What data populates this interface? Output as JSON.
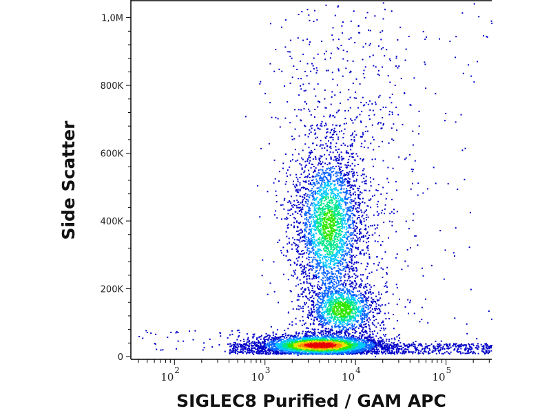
{
  "chart_data": {
    "type": "scatter",
    "subtype": "density-dot-plot",
    "xlabel": "SIGLEC8 Purified / GAM APC",
    "ylabel": "Side Scatter",
    "x_scale": "log",
    "xlim": [
      33,
      320000
    ],
    "ylim": [
      0,
      1050000
    ],
    "x_ticks": [
      {
        "base": "10",
        "exp": "2",
        "value": 100
      },
      {
        "base": "10",
        "exp": "3",
        "value": 1000
      },
      {
        "base": "10",
        "exp": "4",
        "value": 10000
      },
      {
        "base": "10",
        "exp": "5",
        "value": 100000
      }
    ],
    "y_ticks": [
      {
        "label": "0",
        "value": 0
      },
      {
        "label": "200K",
        "value": 200000
      },
      {
        "label": "400K",
        "value": 400000
      },
      {
        "label": "600K",
        "value": 600000
      },
      {
        "label": "800K",
        "value": 800000
      },
      {
        "label": "1,0M",
        "value": 1000000
      }
    ],
    "grid": false,
    "colormap": [
      "#0000c8",
      "#0a64ff",
      "#00c8ff",
      "#00e68c",
      "#32e600",
      "#e6e600",
      "#ff8c00",
      "#e60000"
    ],
    "populations": [
      {
        "x_center": 4000,
        "y_center": 35000,
        "x_spread_decades": 0.28,
        "y_spread": 13000,
        "relative_density": "highest"
      },
      {
        "x_center": 7000,
        "y_center": 140000,
        "x_spread_decades": 0.16,
        "y_spread": 32000,
        "relative_density": "medium"
      },
      {
        "x_center": 5000,
        "y_center": 390000,
        "x_spread_decades": 0.15,
        "y_spread": 95000,
        "relative_density": "medium"
      }
    ]
  }
}
